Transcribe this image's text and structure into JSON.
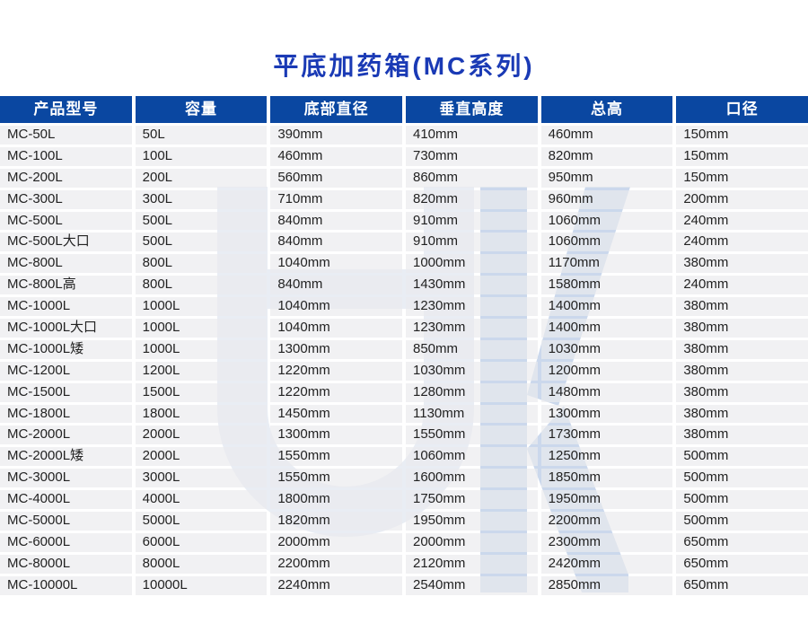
{
  "title": "平底加药箱(MC系列)",
  "table": {
    "headers": [
      "产品型号",
      "容量",
      "底部直径",
      "垂直高度",
      "总高",
      "口径"
    ],
    "rows": [
      [
        "MC-50L",
        "50L",
        "390mm",
        "410mm",
        "460mm",
        "150mm"
      ],
      [
        "MC-100L",
        "100L",
        "460mm",
        "730mm",
        "820mm",
        "150mm"
      ],
      [
        "MC-200L",
        "200L",
        "560mm",
        "860mm",
        "950mm",
        "150mm"
      ],
      [
        "MC-300L",
        "300L",
        "710mm",
        "820mm",
        "960mm",
        "200mm"
      ],
      [
        "MC-500L",
        "500L",
        "840mm",
        "910mm",
        "1060mm",
        "240mm"
      ],
      [
        "MC-500L大口",
        "500L",
        "840mm",
        "910mm",
        "1060mm",
        "240mm"
      ],
      [
        "MC-800L",
        "800L",
        "1040mm",
        "1000mm",
        "1170mm",
        "380mm"
      ],
      [
        "MC-800L高",
        "800L",
        "840mm",
        "1430mm",
        "1580mm",
        "240mm"
      ],
      [
        "MC-1000L",
        "1000L",
        "1040mm",
        "1230mm",
        "1400mm",
        "380mm"
      ],
      [
        "MC-1000L大口",
        "1000L",
        "1040mm",
        "1230mm",
        "1400mm",
        "380mm"
      ],
      [
        "MC-1000L矮",
        "1000L",
        "1300mm",
        "850mm",
        "1030mm",
        "380mm"
      ],
      [
        "MC-1200L",
        "1200L",
        "1220mm",
        "1030mm",
        "1200mm",
        "380mm"
      ],
      [
        "MC-1500L",
        "1500L",
        "1220mm",
        "1280mm",
        "1480mm",
        "380mm"
      ],
      [
        "MC-1800L",
        "1800L",
        "1450mm",
        "1130mm",
        "1300mm",
        "380mm"
      ],
      [
        "MC-2000L",
        "2000L",
        "1300mm",
        "1550mm",
        "1730mm",
        "380mm"
      ],
      [
        "MC-2000L矮",
        "2000L",
        "1550mm",
        "1060mm",
        "1250mm",
        "500mm"
      ],
      [
        "MC-3000L",
        "3000L",
        "1550mm",
        "1600mm",
        "1850mm",
        "500mm"
      ],
      [
        "MC-4000L",
        "4000L",
        "1800mm",
        "1750mm",
        "1950mm",
        "500mm"
      ],
      [
        "MC-5000L",
        "5000L",
        "1820mm",
        "1950mm",
        "2200mm",
        "500mm"
      ],
      [
        "MC-6000L",
        "6000L",
        "2000mm",
        "2000mm",
        "2300mm",
        "650mm"
      ],
      [
        "MC-8000L",
        "8000L",
        "2200mm",
        "2120mm",
        "2420mm",
        "650mm"
      ],
      [
        "MC-10000L",
        "10000L",
        "2240mm",
        "2540mm",
        "2850mm",
        "650mm"
      ]
    ]
  },
  "colors": {
    "title_text": "#1a3ab5",
    "header_bg": "#0a47a1",
    "header_text": "#ffffff",
    "row_bg": "#efeff0",
    "cell_text": "#222222",
    "watermark_light": "#e9edf4",
    "watermark_blue": "#cbd8ec"
  },
  "watermark": {
    "letters": "HK"
  }
}
